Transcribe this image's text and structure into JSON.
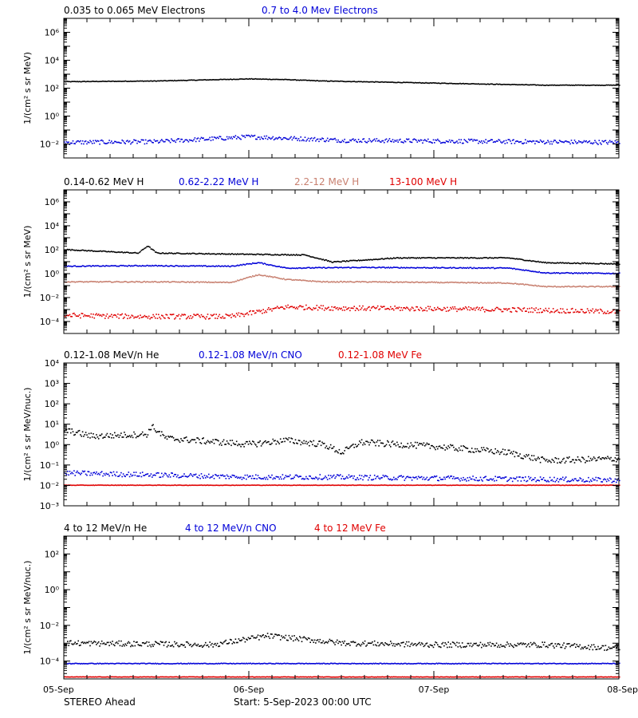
{
  "footer": {
    "left": "STEREO Ahead",
    "center": "Start:  5-Sep-2023 00:00 UTC"
  },
  "x_ticks": [
    "05-Sep",
    "06-Sep",
    "07-Sep",
    "08-Sep"
  ],
  "colors": {
    "black": "#000000",
    "blue": "#0000d8",
    "salmon": "#c88070",
    "red": "#e00000"
  },
  "chart_data": [
    {
      "type": "scatter",
      "ylabel": "1/(cm² s sr MeV)",
      "yscale": "log",
      "ylim_exp": [
        -3,
        7
      ],
      "ytick_labels": [
        "10⁻²",
        "10⁰",
        "10²",
        "10⁴",
        "10⁶"
      ],
      "x_range_days": [
        0,
        3
      ],
      "series": [
        {
          "name": "0.035 to 0.065 MeV Electrons",
          "color": "#000000",
          "trend": [
            [
              0,
              2.45
            ],
            [
              0.5,
              2.5
            ],
            [
              1.0,
              2.65
            ],
            [
              1.2,
              2.6
            ],
            [
              1.4,
              2.5
            ],
            [
              2.0,
              2.35
            ],
            [
              2.6,
              2.2
            ],
            [
              3.0,
              2.2
            ]
          ],
          "scatter": 0.02
        },
        {
          "name": "0.7 to 4.0 Mev Electrons",
          "color": "#0000d8",
          "trend": [
            [
              0,
              -1.9
            ],
            [
              0.5,
              -1.85
            ],
            [
              1.0,
              -1.5
            ],
            [
              1.5,
              -1.75
            ],
            [
              2.0,
              -1.8
            ],
            [
              2.5,
              -1.85
            ],
            [
              3.0,
              -1.9
            ]
          ],
          "scatter": 0.15
        }
      ]
    },
    {
      "type": "scatter",
      "ylabel": "1/(cm² s sr MeV)",
      "yscale": "log",
      "ylim_exp": [
        -5,
        7
      ],
      "ytick_labels": [
        "10⁻⁴",
        "10⁻²",
        "10⁰",
        "10²",
        "10⁴",
        "10⁶"
      ],
      "x_range_days": [
        0,
        3
      ],
      "series": [
        {
          "name": "0.14-0.62 MeV H",
          "color": "#000000",
          "trend": [
            [
              0,
              2.0
            ],
            [
              0.4,
              1.7
            ],
            [
              0.45,
              2.3
            ],
            [
              0.5,
              1.7
            ],
            [
              1.0,
              1.6
            ],
            [
              1.3,
              1.55
            ],
            [
              1.45,
              0.95
            ],
            [
              1.8,
              1.3
            ],
            [
              2.4,
              1.3
            ],
            [
              2.6,
              0.9
            ],
            [
              3.0,
              0.8
            ]
          ],
          "scatter": 0.04
        },
        {
          "name": "0.62-2.22 MeV H",
          "color": "#0000d8",
          "trend": [
            [
              0,
              0.6
            ],
            [
              0.45,
              0.65
            ],
            [
              0.9,
              0.6
            ],
            [
              1.05,
              0.9
            ],
            [
              1.2,
              0.45
            ],
            [
              1.6,
              0.5
            ],
            [
              2.4,
              0.45
            ],
            [
              2.6,
              0.05
            ],
            [
              3.0,
              0.0
            ]
          ],
          "scatter": 0.04
        },
        {
          "name": "2.2-12 MeV H",
          "color": "#c88070",
          "trend": [
            [
              0,
              -0.7
            ],
            [
              0.5,
              -0.7
            ],
            [
              0.9,
              -0.75
            ],
            [
              1.05,
              -0.1
            ],
            [
              1.2,
              -0.5
            ],
            [
              1.4,
              -0.7
            ],
            [
              1.6,
              -0.7
            ],
            [
              2.4,
              -0.8
            ],
            [
              2.6,
              -1.1
            ],
            [
              3.0,
              -1.1
            ]
          ],
          "scatter": 0.04
        },
        {
          "name": "13-100 MeV H",
          "color": "#e00000",
          "trend": [
            [
              0,
              -3.5
            ],
            [
              0.4,
              -3.6
            ],
            [
              0.9,
              -3.6
            ],
            [
              1.2,
              -2.8
            ],
            [
              1.5,
              -2.9
            ],
            [
              2.0,
              -2.95
            ],
            [
              2.5,
              -3.05
            ],
            [
              3.0,
              -3.2
            ]
          ],
          "scatter": 0.2
        }
      ]
    },
    {
      "type": "scatter",
      "ylabel": "1/(cm² s sr MeV/nuc.)",
      "yscale": "log",
      "ylim_exp": [
        -3,
        4
      ],
      "ytick_labels": [
        "10⁻³",
        "10⁻²",
        "10⁻¹",
        "10⁰",
        "10¹",
        "10²",
        "10³",
        "10⁴"
      ],
      "x_range_days": [
        0,
        3
      ],
      "series": [
        {
          "name": "0.12-1.08 MeV/n He",
          "color": "#000000",
          "trend": [
            [
              0,
              0.7
            ],
            [
              0.15,
              0.4
            ],
            [
              0.45,
              0.5
            ],
            [
              0.47,
              0.9
            ],
            [
              0.55,
              0.3
            ],
            [
              1.0,
              0.0
            ],
            [
              1.2,
              0.2
            ],
            [
              1.4,
              0.0
            ],
            [
              1.5,
              -0.4
            ],
            [
              1.6,
              0.1
            ],
            [
              2.0,
              -0.1
            ],
            [
              2.4,
              -0.4
            ],
            [
              2.6,
              -0.8
            ],
            [
              3.0,
              -0.7
            ]
          ],
          "scatter": 0.15
        },
        {
          "name": "0.12-1.08 MeV/n CNO",
          "color": "#0000d8",
          "trend": [
            [
              0,
              -1.4
            ],
            [
              0.5,
              -1.5
            ],
            [
              1.0,
              -1.6
            ],
            [
              1.4,
              -1.6
            ],
            [
              3.0,
              -1.75
            ]
          ],
          "scatter": 0.12
        },
        {
          "name": "0.12-1.08 MeV Fe",
          "color": "#e00000",
          "trend": [
            [
              0,
              -2.0
            ],
            [
              3.0,
              -2.0
            ]
          ],
          "scatter": 0.01
        }
      ]
    },
    {
      "type": "scatter",
      "ylabel": "1/(cm² s sr MeV/nuc.)",
      "yscale": "log",
      "ylim_exp": [
        -5,
        3
      ],
      "ytick_labels": [
        "10⁻⁴",
        "10⁻²",
        "10⁰",
        "10²"
      ],
      "x_range_days": [
        0,
        3
      ],
      "series": [
        {
          "name": "4 to 12 MeV/n He",
          "color": "#000000",
          "trend": [
            [
              0,
              -3.0
            ],
            [
              0.8,
              -3.1
            ],
            [
              1.1,
              -2.6
            ],
            [
              1.5,
              -3.0
            ],
            [
              2.0,
              -3.1
            ],
            [
              2.6,
              -3.1
            ],
            [
              3.0,
              -3.3
            ]
          ],
          "scatter": 0.15
        },
        {
          "name": "4 to 12 MeV/n CNO",
          "color": "#0000d8",
          "trend": [
            [
              0,
              -4.15
            ],
            [
              3.0,
              -4.15
            ]
          ],
          "scatter": 0.02
        },
        {
          "name": "4 to 12 MeV Fe",
          "color": "#e00000",
          "trend": [
            [
              0,
              -4.9
            ],
            [
              3.0,
              -4.9
            ]
          ],
          "scatter": 0.01
        }
      ]
    }
  ]
}
